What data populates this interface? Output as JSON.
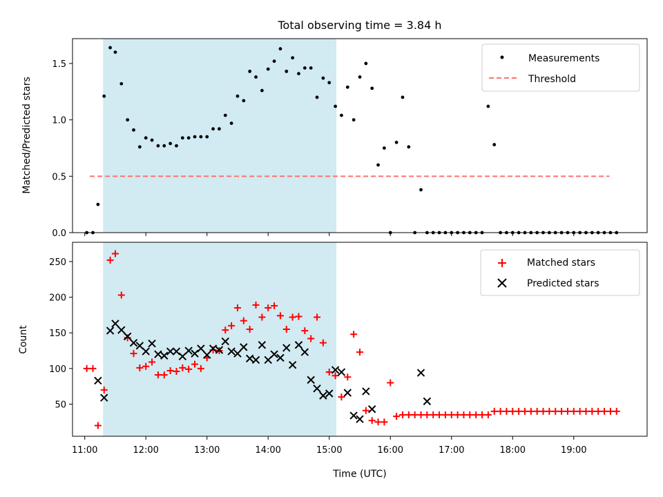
{
  "chart_data": [
    {
      "type": "scatter",
      "title": "Total observing time = 3.84 h",
      "xlabel": "",
      "ylabel": "Matched/Predicted stars",
      "ylim": [
        0,
        1.72
      ],
      "yticks": [
        0.0,
        0.5,
        1.0,
        1.5
      ],
      "ytick_labels": [
        "0.0",
        "0.5",
        "1.0",
        "1.5"
      ],
      "xlim": [
        "10:48",
        "20:12"
      ],
      "highlight_span": {
        "start": "11:18",
        "end": "15:07",
        "color": "#add8e6"
      },
      "legend_position": "upper right",
      "series": [
        {
          "name": "Measurements",
          "marker": "dot",
          "color": "#000000",
          "x": [
            "11:02",
            "11:08",
            "11:13",
            "11:19",
            "11:25",
            "11:30",
            "11:36",
            "11:42",
            "11:48",
            "11:54",
            "12:00",
            "12:06",
            "12:12",
            "12:18",
            "12:24",
            "12:30",
            "12:36",
            "12:42",
            "12:48",
            "12:54",
            "13:00",
            "13:06",
            "13:12",
            "13:18",
            "13:24",
            "13:30",
            "13:36",
            "13:42",
            "13:48",
            "13:54",
            "14:00",
            "14:06",
            "14:12",
            "14:18",
            "14:24",
            "14:30",
            "14:36",
            "14:42",
            "14:48",
            "14:54",
            "15:00",
            "15:06",
            "15:12",
            "15:18",
            "15:24",
            "15:30",
            "15:36",
            "15:42",
            "15:48",
            "15:54",
            "16:00",
            "16:06",
            "16:12",
            "16:18",
            "16:24",
            "16:30",
            "16:36",
            "16:42",
            "16:48",
            "16:54",
            "17:00",
            "17:06",
            "17:12",
            "17:18",
            "17:24",
            "17:30",
            "17:36",
            "17:42",
            "17:48",
            "17:54",
            "18:00",
            "18:06",
            "18:12",
            "18:18",
            "18:24",
            "18:30",
            "18:36",
            "18:42",
            "18:48",
            "18:54",
            "19:00",
            "19:06",
            "19:12",
            "19:18",
            "19:24",
            "19:30",
            "19:36",
            "19:42"
          ],
          "y": [
            0.0,
            0.0,
            0.25,
            1.21,
            1.64,
            1.6,
            1.32,
            1.0,
            0.91,
            0.76,
            0.84,
            0.82,
            0.77,
            0.77,
            0.79,
            0.77,
            0.84,
            0.84,
            0.85,
            0.85,
            0.85,
            0.92,
            0.92,
            1.04,
            0.97,
            1.21,
            1.17,
            1.43,
            1.38,
            1.26,
            1.45,
            1.52,
            1.63,
            1.43,
            1.55,
            1.41,
            1.46,
            1.46,
            1.2,
            1.37,
            1.33,
            1.12,
            1.04,
            1.29,
            1.0,
            1.38,
            1.5,
            1.28,
            0.6,
            0.75,
            0.0,
            0.8,
            1.2,
            0.76,
            0.0,
            0.38,
            0.0,
            0.0,
            0.0,
            0.0,
            0.0,
            0.0,
            0.0,
            0.0,
            0.0,
            0.0,
            1.12,
            0.78,
            0.0,
            0.0,
            0.0,
            0.0,
            0.0,
            0.0,
            0.0,
            0.0,
            0.0,
            0.0,
            0.0,
            0.0,
            0.0,
            0.0,
            0.0,
            0.0,
            0.0,
            0.0,
            0.0,
            0.0
          ]
        },
        {
          "name": "Threshold",
          "marker": "dashed-line",
          "color": "#ff7070",
          "x": [
            "11:05",
            "19:35"
          ],
          "y": [
            0.5,
            0.5
          ]
        }
      ]
    },
    {
      "type": "scatter",
      "title": "",
      "xlabel": "Time (UTC)",
      "ylabel": "Count",
      "ylim": [
        5,
        277
      ],
      "yticks": [
        50,
        100,
        150,
        200,
        250
      ],
      "ytick_labels": [
        "50",
        "100",
        "150",
        "200",
        "250"
      ],
      "xlim": [
        "10:48",
        "20:12"
      ],
      "xticks": [
        "11:00",
        "12:00",
        "13:00",
        "14:00",
        "15:00",
        "16:00",
        "17:00",
        "18:00",
        "19:00"
      ],
      "xtick_labels": [
        "11:00",
        "12:00",
        "13:00",
        "14:00",
        "15:00",
        "16:00",
        "17:00",
        "18:00",
        "19:00"
      ],
      "highlight_span": {
        "start": "11:18",
        "end": "15:07",
        "color": "#add8e6"
      },
      "legend_position": "upper right",
      "series": [
        {
          "name": "Matched stars",
          "marker": "plus",
          "color": "#ff0000",
          "x": [
            "11:02",
            "11:08",
            "11:13",
            "11:19",
            "11:25",
            "11:30",
            "11:36",
            "11:42",
            "11:48",
            "11:54",
            "12:00",
            "12:06",
            "12:12",
            "12:18",
            "12:24",
            "12:30",
            "12:36",
            "12:42",
            "12:48",
            "12:54",
            "13:00",
            "13:06",
            "13:12",
            "13:18",
            "13:24",
            "13:30",
            "13:36",
            "13:42",
            "13:48",
            "13:54",
            "14:00",
            "14:06",
            "14:12",
            "14:18",
            "14:24",
            "14:30",
            "14:36",
            "14:42",
            "14:48",
            "14:54",
            "15:00",
            "15:06",
            "15:12",
            "15:18",
            "15:24",
            "15:30",
            "15:36",
            "15:42",
            "15:48",
            "15:54",
            "16:00",
            "16:06",
            "16:12",
            "16:18",
            "16:24",
            "16:30",
            "16:36",
            "16:42",
            "16:48",
            "16:54",
            "17:00",
            "17:06",
            "17:12",
            "17:18",
            "17:24",
            "17:30",
            "17:36",
            "17:42",
            "17:48",
            "17:54",
            "18:00",
            "18:06",
            "18:12",
            "18:18",
            "18:24",
            "18:30",
            "18:36",
            "18:42",
            "18:48",
            "18:54",
            "19:00",
            "19:06",
            "19:12",
            "19:18",
            "19:24",
            "19:30",
            "19:36",
            "19:42"
          ],
          "y": [
            100,
            100,
            20,
            70,
            252,
            261,
            203,
            143,
            121,
            101,
            103,
            109,
            91,
            91,
            97,
            96,
            101,
            99,
            106,
            100,
            115,
            126,
            125,
            154,
            160,
            185,
            167,
            155,
            189,
            172,
            185,
            188,
            174,
            155,
            172,
            173,
            153,
            142,
            172,
            136,
            95,
            90,
            60,
            88,
            148,
            123,
            41,
            27,
            25,
            25,
            80,
            33,
            35,
            35,
            35,
            35,
            35,
            35,
            35,
            35,
            35,
            35,
            35,
            35,
            35,
            35,
            35,
            40,
            40,
            40,
            40,
            40,
            40,
            40,
            40,
            40,
            40,
            40,
            40,
            40,
            40,
            40,
            40,
            40,
            40,
            40,
            40,
            40
          ]
        },
        {
          "name": "Predicted stars",
          "marker": "x",
          "color": "#000000",
          "x": [
            "11:13",
            "11:19",
            "11:25",
            "11:30",
            "11:36",
            "11:42",
            "11:48",
            "11:54",
            "12:00",
            "12:06",
            "12:12",
            "12:18",
            "12:24",
            "12:30",
            "12:36",
            "12:42",
            "12:48",
            "12:54",
            "13:00",
            "13:06",
            "13:12",
            "13:18",
            "13:24",
            "13:30",
            "13:36",
            "13:42",
            "13:48",
            "13:54",
            "14:00",
            "14:06",
            "14:12",
            "14:18",
            "14:24",
            "14:30",
            "14:36",
            "14:42",
            "14:48",
            "14:54",
            "15:00",
            "15:06",
            "15:12",
            "15:18",
            "15:24",
            "15:30",
            "15:36",
            "15:42",
            "16:30",
            "16:36"
          ],
          "y": [
            83,
            59,
            153,
            163,
            154,
            145,
            136,
            132,
            124,
            135,
            120,
            118,
            124,
            124,
            117,
            125,
            121,
            128,
            119,
            128,
            126,
            138,
            124,
            121,
            130,
            114,
            112,
            133,
            112,
            120,
            115,
            129,
            105,
            133,
            123,
            84,
            72,
            62,
            65,
            98,
            95,
            66,
            34,
            29,
            68,
            43,
            94,
            54
          ]
        }
      ]
    }
  ]
}
